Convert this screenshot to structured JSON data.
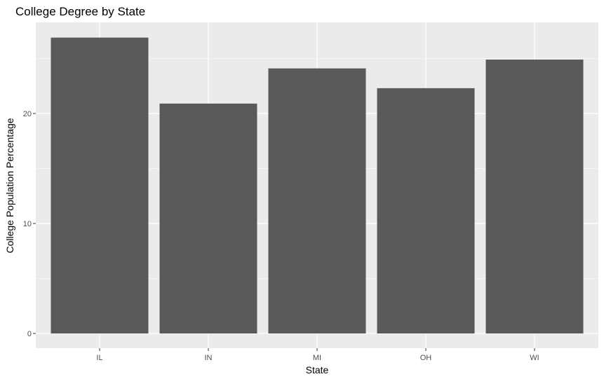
{
  "chart_data": {
    "type": "bar",
    "title": "College Degree by State",
    "xlabel": "State",
    "ylabel": "College Population Percentage",
    "categories": [
      "IL",
      "IN",
      "MI",
      "OH",
      "WI"
    ],
    "values": [
      26.9,
      20.9,
      24.1,
      22.3,
      24.9
    ],
    "ylim": [
      0,
      28
    ],
    "yticks": [
      0,
      10,
      20
    ],
    "grid": true,
    "legend": "none",
    "colors": {
      "panel": "#ebebeb",
      "grid_major": "#ffffff",
      "bar": "#595959",
      "tick": "#333333"
    }
  }
}
